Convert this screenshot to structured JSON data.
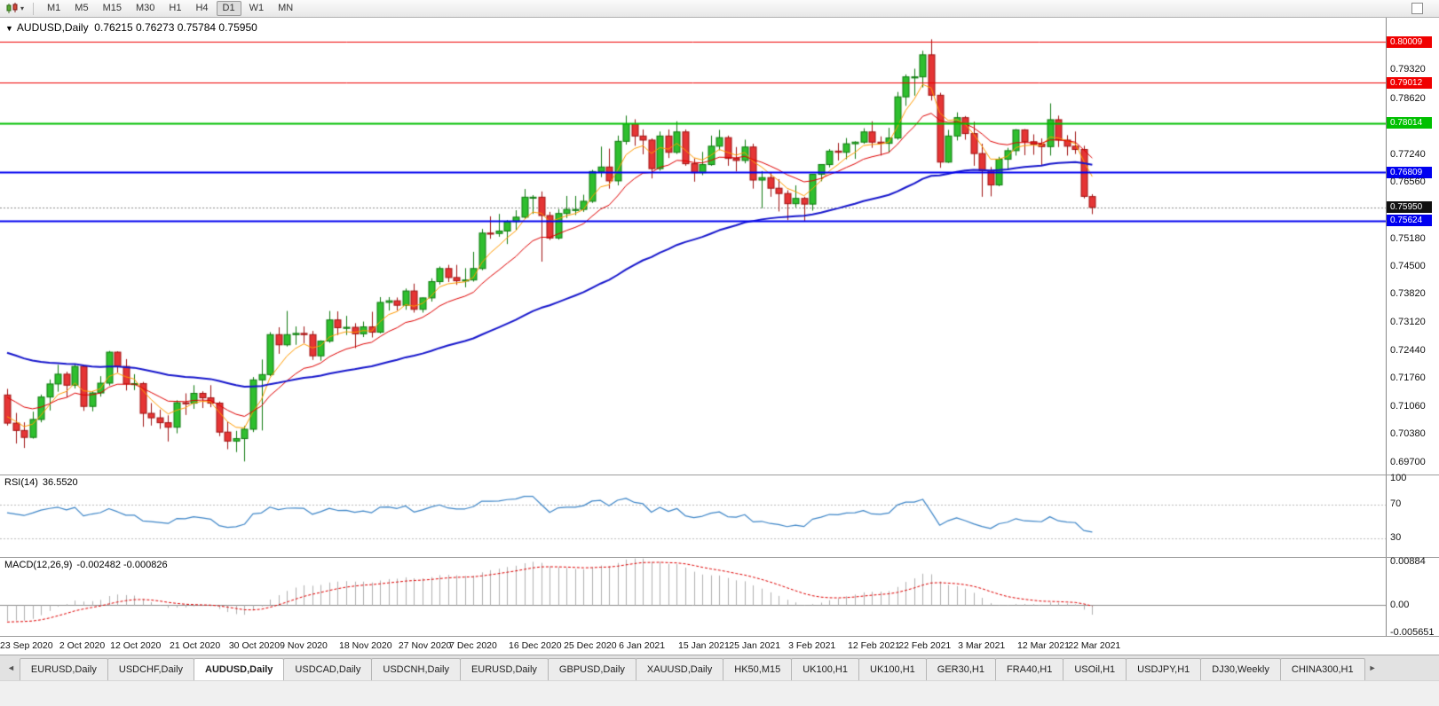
{
  "toolbar": {
    "timeframes": [
      "M1",
      "M5",
      "M15",
      "M30",
      "H1",
      "H4",
      "D1",
      "W1",
      "MN"
    ],
    "active_timeframe": "D1"
  },
  "chart": {
    "symbol_period": "AUDUSD,Daily",
    "ohlc_line": "0.76215 0.76273 0.75784 0.75950"
  },
  "chart_data": {
    "type": "candlestick",
    "symbol": "AUDUSD",
    "period": "Daily",
    "title": "AUDUSD,Daily 0.76215 0.76273 0.75784 0.75950",
    "last_bar": {
      "open": 0.76215,
      "high": 0.76273,
      "low": 0.75784,
      "close": 0.7595
    },
    "price_axis": {
      "min": 0.694,
      "max": 0.806,
      "ticks": [
        0.7932,
        0.7862,
        0.7724,
        0.7656,
        0.7518,
        0.745,
        0.7382,
        0.7312,
        0.7244,
        0.7176,
        0.7106,
        0.7038,
        0.697
      ]
    },
    "hlines": [
      {
        "value": 0.80009,
        "color": "#f00000",
        "width": 1
      },
      {
        "value": 0.79012,
        "color": "#f00000",
        "width": 1
      },
      {
        "value": 0.78014,
        "color": "#00c000",
        "width": 2
      },
      {
        "value": 0.76809,
        "color": "#0000f0",
        "width": 2
      },
      {
        "value": 0.75624,
        "color": "#0000f0",
        "width": 2
      }
    ],
    "current_price": {
      "value": 0.7595,
      "label": "0.75950",
      "bg": "#111111",
      "line_color": "#909090"
    },
    "colors": {
      "background": "#ffffff",
      "bull_fill": "#2fbf2f",
      "bull_border": "#0f7a0f",
      "bear_fill": "#e53535",
      "bear_border": "#a01212"
    },
    "moving_averages": [
      {
        "name": "ma-fast-orange",
        "period": 5,
        "color": "#ff9c00",
        "width": 1,
        "seed": 0.709
      },
      {
        "name": "ma-mid-red",
        "period": 13,
        "color": "#e00000",
        "width": 1,
        "seed": 0.714
      },
      {
        "name": "ma-slow-blue",
        "period": 55,
        "color": "#1616cc",
        "width": 2,
        "seed": 0.7245
      }
    ],
    "x_labels": [
      [
        "23 Sep 2020",
        0
      ],
      [
        "2 Oct 2020",
        7
      ],
      [
        "12 Oct 2020",
        13
      ],
      [
        "21 Oct 2020",
        20
      ],
      [
        "30 Oct 2020",
        27
      ],
      [
        "9 Nov 2020",
        33
      ],
      [
        "18 Nov 2020",
        40
      ],
      [
        "27 Nov 2020",
        47
      ],
      [
        "7 Dec 2020",
        53
      ],
      [
        "16 Dec 2020",
        60
      ],
      [
        "25 Dec 2020",
        66.5
      ],
      [
        "6 Jan 2021",
        73
      ],
      [
        "15 Jan 2021",
        80
      ],
      [
        "25 Jan 2021",
        86
      ],
      [
        "3 Feb 2021",
        93
      ],
      [
        "12 Feb 2021",
        100
      ],
      [
        "22 Feb 2021",
        106
      ],
      [
        "3 Mar 2021",
        113
      ],
      [
        "12 Mar 2021",
        120
      ],
      [
        "22 Mar 2021",
        126
      ]
    ],
    "candles": [
      [
        0.7135,
        0.715,
        0.706,
        0.7066
      ],
      [
        0.7066,
        0.7091,
        0.7016,
        0.7048
      ],
      [
        0.7048,
        0.7068,
        0.7005,
        0.7031
      ],
      [
        0.7031,
        0.7094,
        0.7028,
        0.7075
      ],
      [
        0.7075,
        0.7136,
        0.7068,
        0.713
      ],
      [
        0.713,
        0.7173,
        0.7097,
        0.7162
      ],
      [
        0.7162,
        0.7209,
        0.7143,
        0.7186
      ],
      [
        0.7186,
        0.7192,
        0.7129,
        0.7159
      ],
      [
        0.7159,
        0.7211,
        0.7151,
        0.7205
      ],
      [
        0.7205,
        0.7209,
        0.7096,
        0.7107
      ],
      [
        0.7107,
        0.7144,
        0.7095,
        0.714
      ],
      [
        0.714,
        0.7181,
        0.7131,
        0.7164
      ],
      [
        0.7164,
        0.7243,
        0.7158,
        0.724
      ],
      [
        0.724,
        0.7242,
        0.719,
        0.7205
      ],
      [
        0.7205,
        0.7223,
        0.7146,
        0.7162
      ],
      [
        0.7162,
        0.7186,
        0.7147,
        0.7163
      ],
      [
        0.7163,
        0.7167,
        0.7057,
        0.709
      ],
      [
        0.709,
        0.7115,
        0.706,
        0.7079
      ],
      [
        0.7079,
        0.7099,
        0.7052,
        0.7067
      ],
      [
        0.7067,
        0.7085,
        0.7021,
        0.7056
      ],
      [
        0.7056,
        0.7122,
        0.7041,
        0.7116
      ],
      [
        0.7116,
        0.7139,
        0.7086,
        0.7115
      ],
      [
        0.7115,
        0.7159,
        0.7101,
        0.7139
      ],
      [
        0.7139,
        0.7144,
        0.7103,
        0.7128
      ],
      [
        0.7128,
        0.7159,
        0.7105,
        0.7115
      ],
      [
        0.7115,
        0.7119,
        0.7034,
        0.7044
      ],
      [
        0.7044,
        0.707,
        0.7002,
        0.7022
      ],
      [
        0.7022,
        0.7047,
        0.6995,
        0.7028
      ],
      [
        0.7028,
        0.7059,
        0.6972,
        0.7051
      ],
      [
        0.7051,
        0.7179,
        0.7044,
        0.7172
      ],
      [
        0.7172,
        0.7222,
        0.7048,
        0.7185
      ],
      [
        0.7185,
        0.7289,
        0.7181,
        0.7283
      ],
      [
        0.7283,
        0.7301,
        0.7236,
        0.7258
      ],
      [
        0.7258,
        0.7341,
        0.7254,
        0.7283
      ],
      [
        0.7283,
        0.7303,
        0.7258,
        0.7286
      ],
      [
        0.7286,
        0.7303,
        0.7262,
        0.7283
      ],
      [
        0.7283,
        0.7292,
        0.7221,
        0.7231
      ],
      [
        0.7231,
        0.7269,
        0.7219,
        0.7267
      ],
      [
        0.7267,
        0.7341,
        0.7263,
        0.7319
      ],
      [
        0.7319,
        0.734,
        0.7282,
        0.73
      ],
      [
        0.73,
        0.7329,
        0.7282,
        0.7301
      ],
      [
        0.7301,
        0.7311,
        0.725,
        0.7285
      ],
      [
        0.7285,
        0.7315,
        0.7277,
        0.7302
      ],
      [
        0.7302,
        0.7339,
        0.7276,
        0.7289
      ],
      [
        0.7289,
        0.7375,
        0.7286,
        0.7362
      ],
      [
        0.7362,
        0.7375,
        0.7342,
        0.7366
      ],
      [
        0.7366,
        0.7374,
        0.7342,
        0.7355
      ],
      [
        0.7355,
        0.7396,
        0.7344,
        0.739
      ],
      [
        0.739,
        0.7408,
        0.7337,
        0.7345
      ],
      [
        0.7345,
        0.7374,
        0.7337,
        0.7373
      ],
      [
        0.7373,
        0.7421,
        0.7364,
        0.7413
      ],
      [
        0.7413,
        0.745,
        0.7406,
        0.7445
      ],
      [
        0.7445,
        0.7454,
        0.7412,
        0.7423
      ],
      [
        0.7423,
        0.7454,
        0.7405,
        0.7415
      ],
      [
        0.7415,
        0.7446,
        0.7399,
        0.7417
      ],
      [
        0.7417,
        0.7486,
        0.7413,
        0.7445
      ],
      [
        0.7445,
        0.7542,
        0.7441,
        0.7532
      ],
      [
        0.7532,
        0.7573,
        0.7518,
        0.7531
      ],
      [
        0.7531,
        0.7579,
        0.7523,
        0.7537
      ],
      [
        0.7537,
        0.7564,
        0.7505,
        0.756
      ],
      [
        0.756,
        0.7588,
        0.7539,
        0.7571
      ],
      [
        0.7571,
        0.764,
        0.7567,
        0.762
      ],
      [
        0.762,
        0.7625,
        0.7579,
        0.762
      ],
      [
        0.762,
        0.7634,
        0.7462,
        0.7575
      ],
      [
        0.7575,
        0.7584,
        0.7515,
        0.752
      ],
      [
        0.752,
        0.7591,
        0.7516,
        0.758
      ],
      [
        0.758,
        0.7623,
        0.7569,
        0.759
      ],
      [
        0.759,
        0.7623,
        0.7576,
        0.759
      ],
      [
        0.759,
        0.7626,
        0.7584,
        0.761
      ],
      [
        0.761,
        0.7687,
        0.7606,
        0.7683
      ],
      [
        0.7683,
        0.7744,
        0.7669,
        0.7694
      ],
      [
        0.7694,
        0.7739,
        0.7641,
        0.766
      ],
      [
        0.766,
        0.7771,
        0.7649,
        0.7757
      ],
      [
        0.7757,
        0.782,
        0.7749,
        0.78
      ],
      [
        0.78,
        0.7811,
        0.7746,
        0.777
      ],
      [
        0.777,
        0.7786,
        0.7725,
        0.776
      ],
      [
        0.776,
        0.7764,
        0.7666,
        0.769
      ],
      [
        0.769,
        0.7781,
        0.7685,
        0.777
      ],
      [
        0.777,
        0.7786,
        0.7716,
        0.773
      ],
      [
        0.773,
        0.7806,
        0.7726,
        0.778
      ],
      [
        0.778,
        0.7786,
        0.7697,
        0.7702
      ],
      [
        0.7702,
        0.7715,
        0.7658,
        0.768
      ],
      [
        0.768,
        0.7731,
        0.7674,
        0.77
      ],
      [
        0.77,
        0.7771,
        0.7697,
        0.7745
      ],
      [
        0.7745,
        0.7785,
        0.7735,
        0.7766
      ],
      [
        0.7766,
        0.7771,
        0.7697,
        0.7715
      ],
      [
        0.7715,
        0.7743,
        0.7683,
        0.771
      ],
      [
        0.771,
        0.7761,
        0.7703,
        0.7743
      ],
      [
        0.7743,
        0.7751,
        0.7641,
        0.7662
      ],
      [
        0.7662,
        0.7684,
        0.7593,
        0.7668
      ],
      [
        0.7668,
        0.768,
        0.7621,
        0.7642
      ],
      [
        0.7642,
        0.7664,
        0.7585,
        0.7629
      ],
      [
        0.7629,
        0.7637,
        0.7564,
        0.7604
      ],
      [
        0.7604,
        0.7649,
        0.7595,
        0.7617
      ],
      [
        0.7617,
        0.7621,
        0.7562,
        0.7603
      ],
      [
        0.7603,
        0.7677,
        0.7587,
        0.7676
      ],
      [
        0.7676,
        0.7701,
        0.7659,
        0.77
      ],
      [
        0.77,
        0.7738,
        0.7693,
        0.7733
      ],
      [
        0.7733,
        0.7753,
        0.771,
        0.773
      ],
      [
        0.773,
        0.7765,
        0.7713,
        0.7751
      ],
      [
        0.7751,
        0.7757,
        0.7714,
        0.7755
      ],
      [
        0.7755,
        0.7789,
        0.7751,
        0.778
      ],
      [
        0.778,
        0.7806,
        0.7741,
        0.7755
      ],
      [
        0.7755,
        0.7769,
        0.7722,
        0.7752
      ],
      [
        0.7752,
        0.779,
        0.7729,
        0.7765
      ],
      [
        0.7765,
        0.7878,
        0.7761,
        0.7866
      ],
      [
        0.7866,
        0.7921,
        0.7844,
        0.7915
      ],
      [
        0.7915,
        0.7935,
        0.7869,
        0.7915
      ],
      [
        0.7915,
        0.7979,
        0.7889,
        0.7969
      ],
      [
        0.7969,
        0.8007,
        0.7857,
        0.787
      ],
      [
        0.787,
        0.7876,
        0.7692,
        0.7706
      ],
      [
        0.7706,
        0.7785,
        0.7704,
        0.777
      ],
      [
        0.777,
        0.7828,
        0.7759,
        0.7815
      ],
      [
        0.7815,
        0.7819,
        0.7761,
        0.7776
      ],
      [
        0.7776,
        0.7805,
        0.7697,
        0.7727
      ],
      [
        0.7727,
        0.7751,
        0.7621,
        0.7685
      ],
      [
        0.7685,
        0.7694,
        0.7622,
        0.765
      ],
      [
        0.765,
        0.7719,
        0.7647,
        0.7713
      ],
      [
        0.7713,
        0.7741,
        0.7686,
        0.7734
      ],
      [
        0.7734,
        0.7787,
        0.7722,
        0.7785
      ],
      [
        0.7785,
        0.7787,
        0.7723,
        0.7756
      ],
      [
        0.7756,
        0.7774,
        0.7724,
        0.775
      ],
      [
        0.775,
        0.7764,
        0.7697,
        0.7744
      ],
      [
        0.7744,
        0.785,
        0.7722,
        0.781
      ],
      [
        0.781,
        0.782,
        0.7743,
        0.776
      ],
      [
        0.776,
        0.7772,
        0.7722,
        0.7745
      ],
      [
        0.7745,
        0.7781,
        0.7726,
        0.7737
      ],
      [
        0.7737,
        0.7746,
        0.7617,
        0.7622
      ],
      [
        0.76215,
        0.76273,
        0.75784,
        0.7595
      ]
    ],
    "indicators": {
      "rsi": {
        "label": "RSI(14)",
        "value_display": "36.5520",
        "period": 14,
        "color": "#3e86c8",
        "level_color": "#bdbdbd",
        "levels": [
          70,
          30
        ],
        "axis_values": [
          100,
          70,
          30
        ],
        "scale": {
          "min": 8,
          "max": 104
        }
      },
      "macd": {
        "label": "MACD(12,26,9)",
        "value_display": "-0.002482 -0.000826",
        "fast": 12,
        "slow": 26,
        "signal": 9,
        "hist_color": "#b0b0b0",
        "signal_color": "#e00000",
        "zero_color": "#8a8a8a",
        "axis_labels": [
          "0.00884",
          "0.00",
          "-0.005651"
        ],
        "axis_values": [
          0.00884,
          0,
          -0.005651
        ],
        "scale": {
          "min": -0.0063,
          "max": 0.0097
        }
      }
    }
  },
  "tabs": {
    "scroll_left": "◄",
    "scroll_right": "►",
    "active_index": 2,
    "items": [
      "EURUSD,Daily",
      "USDCHF,Daily",
      "AUDUSD,Daily",
      "USDCAD,Daily",
      "USDCNH,Daily",
      "EURUSD,Daily",
      "GBPUSD,Daily",
      "XAUUSD,Daily",
      "HK50,M15",
      "UK100,H1",
      "UK100,H1",
      "GER30,H1",
      "FRA40,H1",
      "USOil,H1",
      "USDJPY,H1",
      "DJ30,Weekly",
      "CHINA300,H1"
    ]
  }
}
